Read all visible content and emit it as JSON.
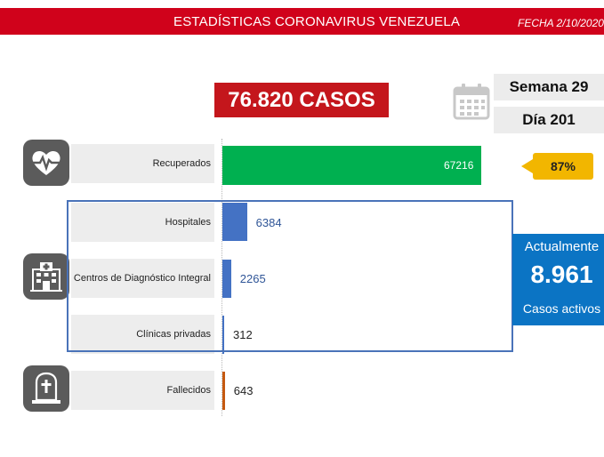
{
  "header": {
    "title": "ESTADÍSTICAS CORONAVIRUS VENEZUELA",
    "date": "FECHA 2/10/2020"
  },
  "total_cases": "76.820 CASOS",
  "week_label": "Semana 29",
  "day_label": "Día 201",
  "recovered_percent": "87%",
  "active": {
    "label_top": "Actualmente",
    "value": "8.961",
    "label_bottom": "Casos activos"
  },
  "colors": {
    "header": "#d0021b",
    "total_box": "#c4161c",
    "recovered_bar": "#00b050",
    "active_bars": "#4472c4",
    "deaths_bar": "#c55a11",
    "percent_tag": "#f2b600",
    "active_box": "#0b74c4"
  },
  "icons": {
    "recovered": "heart-pulse-icon",
    "hospitalized": "hospital-icon",
    "deaths": "tombstone-icon",
    "calendar": "calendar-icon"
  },
  "chart_data": {
    "type": "bar",
    "orientation": "horizontal",
    "categories": [
      "Recuperados",
      "Hospitales",
      "Centros de Diagnóstico Integral",
      "Clínicas privadas",
      "Fallecidos"
    ],
    "values": [
      67216,
      6384,
      2265,
      312,
      643
    ],
    "grid": false
  }
}
